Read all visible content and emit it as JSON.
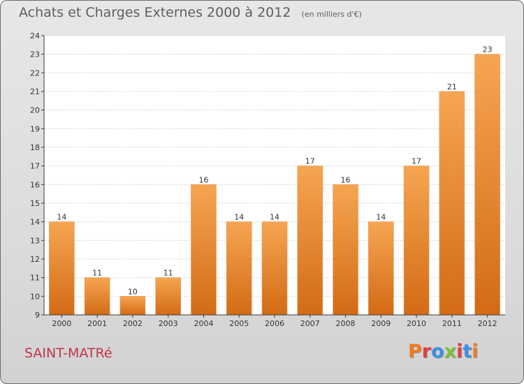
{
  "header": {
    "title": "Achats et Charges Externes 2000 à 2012",
    "unit_note": "(en milliers d'€)"
  },
  "footer": {
    "commune": "SAINT-MATRé",
    "logo_text": "Proxiti",
    "logo_colors": [
      "#f07a1c",
      "#e63c3c",
      "#3c8fe6",
      "#7cc23a",
      "#e63c3c",
      "#3c8fe6",
      "#f07a1c"
    ]
  },
  "colors": {
    "bar_light": "#f6a552",
    "bar_dark": "#d36b15",
    "axis": "#3a3a3a",
    "grid": "#bbbbbb",
    "text": "#333333",
    "plot_bg": "#ffffff"
  },
  "chart_data": {
    "type": "bar",
    "categories": [
      "2000",
      "2001",
      "2002",
      "2003",
      "2004",
      "2005",
      "2006",
      "2007",
      "2008",
      "2009",
      "2010",
      "2011",
      "2012"
    ],
    "values": [
      14,
      11,
      10,
      11,
      16,
      14,
      14,
      17,
      16,
      14,
      17,
      21,
      23
    ],
    "data_labels": [
      "14",
      "11",
      "10",
      "11",
      "16",
      "14",
      "14",
      "17",
      "16",
      "14",
      "17",
      "21",
      "23"
    ],
    "ylim": [
      9,
      24
    ],
    "yticks": [
      9,
      10,
      11,
      12,
      13,
      14,
      15,
      16,
      17,
      18,
      19,
      20,
      21,
      22,
      23,
      24
    ],
    "grid": true,
    "xlabel": "",
    "ylabel": ""
  }
}
